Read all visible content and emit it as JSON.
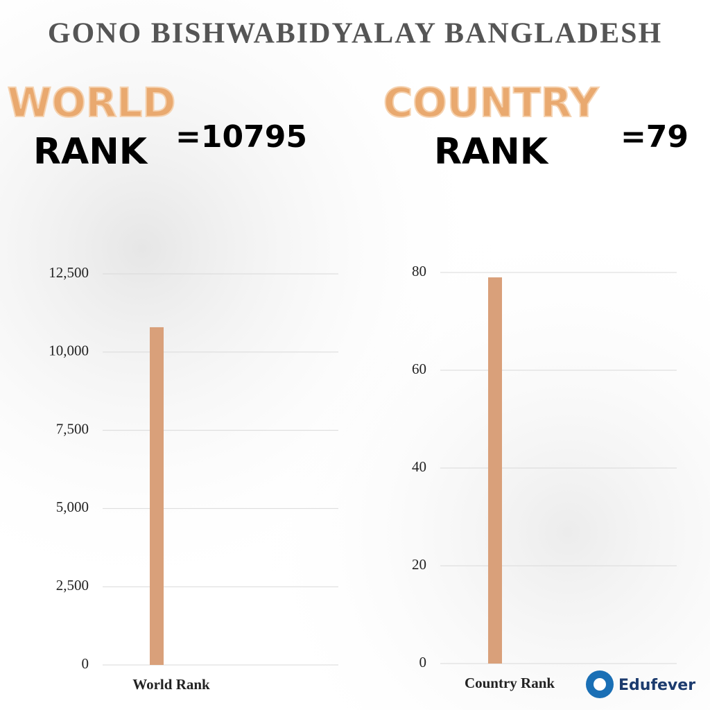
{
  "title": "GONO BISHWABIDYALAY BANGLADESH",
  "panels": [
    {
      "heading_top": "WORLD",
      "heading_bottom": "RANK"
    },
    {
      "heading_top": "COUNTRY",
      "heading_bottom": "RANK"
    }
  ],
  "logo": "Edufever",
  "chart_data": [
    {
      "type": "bar",
      "categories": [
        "World Rank"
      ],
      "values": [
        10795
      ],
      "value_labels": [
        "=10795"
      ],
      "color": "#d9a07a",
      "ylim": [
        0,
        12500
      ],
      "yticks": [
        0,
        {
          "value": 2500,
          "label": "2,500"
        },
        {
          "value": 5000,
          "label": "5,000"
        },
        {
          "value": 7500,
          "label": "7,500"
        },
        {
          "value": 10000,
          "label": "10,000"
        },
        {
          "value": 12500,
          "label": "12,500"
        }
      ],
      "grid": true
    },
    {
      "type": "bar",
      "categories": [
        "Country Rank"
      ],
      "values": [
        79
      ],
      "value_labels": [
        "=79"
      ],
      "color": "#d9a07a",
      "ylim": [
        0,
        80
      ],
      "yticks": [
        0,
        20,
        40,
        60,
        80
      ],
      "grid": true
    }
  ]
}
